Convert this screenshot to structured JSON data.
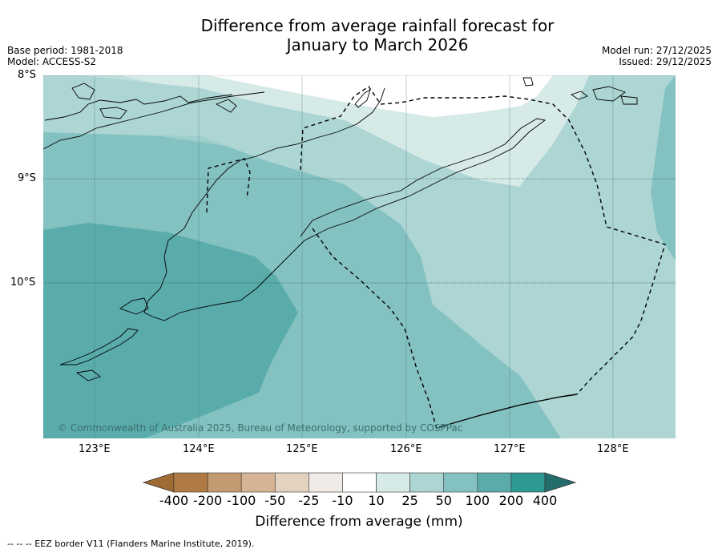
{
  "title_line1": "Difference from average rainfall forecast for",
  "title_line2": "January to March 2026",
  "base_period": "Base period: 1981-2018",
  "model": "Model: ACCESS-S2",
  "model_run": "Model run: 27/12/2025",
  "issued": "Issued: 29/12/2025",
  "lat_labels": [
    "8°S",
    "9°S",
    "10°S"
  ],
  "lon_labels": [
    "123°E",
    "124°E",
    "125°E",
    "126°E",
    "127°E",
    "128°E"
  ],
  "credit": "© Commonwealth of Australia 2025, Bureau of Meteorology, supported by COSPPac",
  "colorbar": {
    "labels": [
      "-400",
      "-200",
      "-100",
      "-50",
      "-25",
      "-10",
      "10",
      "25",
      "50",
      "100",
      "200",
      "400"
    ],
    "colors": [
      "#a06a33",
      "#b07a45",
      "#c39a72",
      "#d4b494",
      "#e3d2bf",
      "#f0ebe6",
      "#ffffff",
      "#d6eae8",
      "#acd5d4",
      "#84c2c1",
      "#5aacab",
      "#2e9893",
      "#236e6c"
    ],
    "title": "Difference from average (mm)"
  },
  "footnote": "--  --  -- EEZ border V11 (Flanders Marine Institute, 2019).",
  "icon_names": {
    "compass": "none"
  }
}
